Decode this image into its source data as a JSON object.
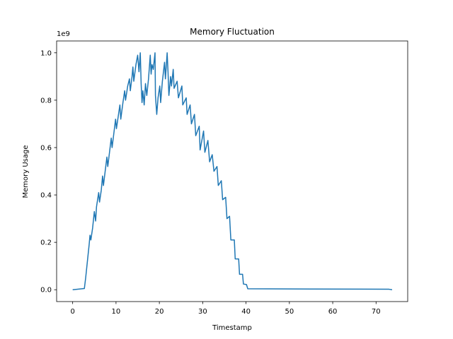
{
  "chart_data": {
    "type": "line",
    "title": "Memory Fluctuation",
    "xlabel": "Timestamp",
    "ylabel": "Memory Usage",
    "y_offset_label": "1e9",
    "xlim": [
      -3.7,
      77.3
    ],
    "ylim": [
      -0.05,
      1.05
    ],
    "x_ticks": [
      0,
      10,
      20,
      30,
      40,
      50,
      60,
      70
    ],
    "x_tick_labels": [
      "0",
      "10",
      "20",
      "30",
      "40",
      "50",
      "60",
      "70"
    ],
    "y_ticks": [
      0.0,
      0.2,
      0.4,
      0.6,
      0.8,
      1.0
    ],
    "y_tick_labels": [
      "0.0",
      "0.2",
      "0.4",
      "0.6",
      "0.8",
      "1.0"
    ],
    "grid": false,
    "legend": "none",
    "series": [
      {
        "color": "#1f77b4",
        "points": [
          [
            0.0,
            0.0
          ],
          [
            2.7,
            0.005
          ],
          [
            3.0,
            0.05
          ],
          [
            3.8,
            0.19
          ],
          [
            4.0,
            0.23
          ],
          [
            4.2,
            0.21
          ],
          [
            4.6,
            0.26
          ],
          [
            5.0,
            0.33
          ],
          [
            5.3,
            0.29
          ],
          [
            5.5,
            0.35
          ],
          [
            6.0,
            0.41
          ],
          [
            6.2,
            0.37
          ],
          [
            6.6,
            0.42
          ],
          [
            6.9,
            0.48
          ],
          [
            7.1,
            0.44
          ],
          [
            7.5,
            0.5
          ],
          [
            7.9,
            0.56
          ],
          [
            8.1,
            0.52
          ],
          [
            8.5,
            0.58
          ],
          [
            8.9,
            0.64
          ],
          [
            9.1,
            0.6
          ],
          [
            9.5,
            0.66
          ],
          [
            9.9,
            0.72
          ],
          [
            10.1,
            0.68
          ],
          [
            10.5,
            0.73
          ],
          [
            10.9,
            0.78
          ],
          [
            11.1,
            0.72
          ],
          [
            11.6,
            0.79
          ],
          [
            12.0,
            0.84
          ],
          [
            12.2,
            0.8
          ],
          [
            12.7,
            0.86
          ],
          [
            13.1,
            0.89
          ],
          [
            13.3,
            0.84
          ],
          [
            13.7,
            0.9
          ],
          [
            13.9,
            0.94
          ],
          [
            14.1,
            0.88
          ],
          [
            14.6,
            0.95
          ],
          [
            15.0,
            0.99
          ],
          [
            15.3,
            0.92
          ],
          [
            15.6,
            1.0
          ],
          [
            15.8,
            0.87
          ],
          [
            16.0,
            0.79
          ],
          [
            16.2,
            0.84
          ],
          [
            16.5,
            0.78
          ],
          [
            16.8,
            0.87
          ],
          [
            17.1,
            0.82
          ],
          [
            17.5,
            0.89
          ],
          [
            17.9,
            0.99
          ],
          [
            18.1,
            0.91
          ],
          [
            18.3,
            0.95
          ],
          [
            18.6,
            0.93
          ],
          [
            19.0,
            1.0
          ],
          [
            19.1,
            0.82
          ],
          [
            19.4,
            0.74
          ],
          [
            19.7,
            0.81
          ],
          [
            20.1,
            0.86
          ],
          [
            20.3,
            0.79
          ],
          [
            20.7,
            0.88
          ],
          [
            21.2,
            0.96
          ],
          [
            21.4,
            0.89
          ],
          [
            21.8,
            1.0
          ],
          [
            22.0,
            0.92
          ],
          [
            22.2,
            0.82
          ],
          [
            22.6,
            0.9
          ],
          [
            22.8,
            0.86
          ],
          [
            23.2,
            0.93
          ],
          [
            23.4,
            0.85
          ],
          [
            24.1,
            0.88
          ],
          [
            24.4,
            0.81
          ],
          [
            25.2,
            0.86
          ],
          [
            25.4,
            0.78
          ],
          [
            26.2,
            0.81
          ],
          [
            26.4,
            0.74
          ],
          [
            27.1,
            0.78
          ],
          [
            27.4,
            0.7
          ],
          [
            28.1,
            0.74
          ],
          [
            28.4,
            0.65
          ],
          [
            29.2,
            0.69
          ],
          [
            29.4,
            0.59
          ],
          [
            30.2,
            0.67
          ],
          [
            30.5,
            0.58
          ],
          [
            31.2,
            0.63
          ],
          [
            31.6,
            0.54
          ],
          [
            32.2,
            0.57
          ],
          [
            32.6,
            0.5
          ],
          [
            33.3,
            0.52
          ],
          [
            33.6,
            0.44
          ],
          [
            34.3,
            0.46
          ],
          [
            34.6,
            0.38
          ],
          [
            35.3,
            0.39
          ],
          [
            35.6,
            0.3
          ],
          [
            36.2,
            0.31
          ],
          [
            36.5,
            0.21
          ],
          [
            37.3,
            0.21
          ],
          [
            37.5,
            0.13
          ],
          [
            38.3,
            0.13
          ],
          [
            38.5,
            0.065
          ],
          [
            39.2,
            0.065
          ],
          [
            39.4,
            0.024
          ],
          [
            40.1,
            0.022
          ],
          [
            40.4,
            0.004
          ],
          [
            55.0,
            0.003
          ],
          [
            73.0,
            0.002
          ],
          [
            73.7,
            0.0
          ]
        ]
      }
    ]
  }
}
